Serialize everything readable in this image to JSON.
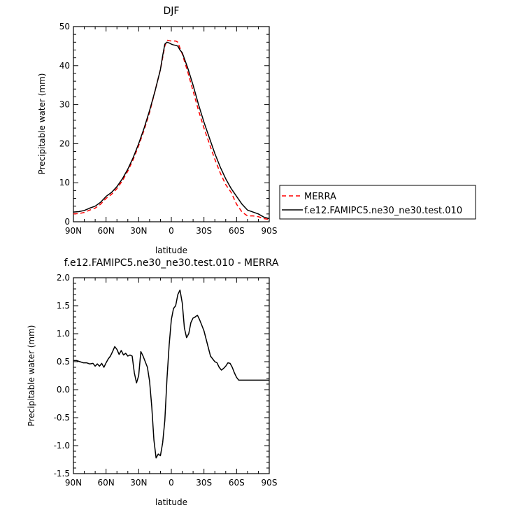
{
  "chart_data": [
    {
      "type": "line",
      "title": "DJF",
      "xlabel": "latitude",
      "ylabel": "Precipitable water (mm)",
      "xlim": [
        90,
        -90
      ],
      "ylim": [
        0,
        50
      ],
      "xticks": [
        90,
        60,
        30,
        0,
        -30,
        -60,
        -90
      ],
      "xtick_labels": [
        "90N",
        "60N",
        "30N",
        "0",
        "30S",
        "60S",
        "90S"
      ],
      "yticks": [
        0,
        10,
        20,
        30,
        40,
        50
      ],
      "ytick_labels": [
        "0",
        "10",
        "20",
        "30",
        "40",
        "50"
      ],
      "legend": {
        "placement": "right, outside plot"
      },
      "series": [
        {
          "name": "MERRA",
          "color": "#ff0000",
          "style": "dashed",
          "x": [
            90,
            85,
            80,
            75,
            70,
            65,
            60,
            55,
            50,
            45,
            40,
            35,
            30,
            25,
            20,
            15,
            10,
            8,
            6,
            4,
            2,
            0,
            -2,
            -4,
            -6,
            -8,
            -10,
            -15,
            -20,
            -25,
            -30,
            -35,
            -40,
            -45,
            -50,
            -55,
            -60,
            -65,
            -70,
            -75,
            -80,
            -85,
            -90
          ],
          "y": [
            2.0,
            2.1,
            2.4,
            3.0,
            3.5,
            4.5,
            6.0,
            7.0,
            8.5,
            10.5,
            13.0,
            16.0,
            19.5,
            23.5,
            28.0,
            33.5,
            39.0,
            42.0,
            45.0,
            46.5,
            46.4,
            46.3,
            46.3,
            46.3,
            46.0,
            44.5,
            43.0,
            38.5,
            33.5,
            28.5,
            24.0,
            20.0,
            16.0,
            12.5,
            9.5,
            7.5,
            4.5,
            2.5,
            1.5,
            1.5,
            1.3,
            0.8,
            0.6
          ]
        },
        {
          "name": "f.e12.FAMIPC5.ne30_ne30.test.010",
          "color": "#000000",
          "style": "solid",
          "x": [
            90,
            85,
            80,
            75,
            70,
            65,
            60,
            55,
            50,
            45,
            40,
            35,
            30,
            25,
            20,
            15,
            10,
            8,
            6,
            4,
            2,
            0,
            -2,
            -4,
            -6,
            -8,
            -10,
            -15,
            -20,
            -25,
            -30,
            -35,
            -40,
            -45,
            -50,
            -55,
            -60,
            -65,
            -70,
            -75,
            -80,
            -85,
            -90
          ],
          "y": [
            2.5,
            2.6,
            2.9,
            3.5,
            4.0,
            5.0,
            6.5,
            7.5,
            9.0,
            11.0,
            13.5,
            16.5,
            20.0,
            24.0,
            28.5,
            33.5,
            39.0,
            42.5,
            45.5,
            46.0,
            45.8,
            45.5,
            45.3,
            45.2,
            45.0,
            44.0,
            43.3,
            39.5,
            35.0,
            30.0,
            25.5,
            21.5,
            17.5,
            14.0,
            11.0,
            8.5,
            6.5,
            4.5,
            3.0,
            2.5,
            2.0,
            1.2,
            0.8
          ]
        }
      ]
    },
    {
      "type": "line",
      "title": "f.e12.FAMIPC5.ne30_ne30.test.010 - MERRA",
      "xlabel": "latitude",
      "ylabel": "Precipitable water (mm)",
      "xlim": [
        90,
        -90
      ],
      "ylim": [
        -1.5,
        2.0
      ],
      "xticks": [
        90,
        60,
        30,
        0,
        -30,
        -60,
        -90
      ],
      "xtick_labels": [
        "90N",
        "60N",
        "30N",
        "0",
        "30S",
        "60S",
        "90S"
      ],
      "yticks": [
        -1.5,
        -1.0,
        -0.5,
        0.0,
        0.5,
        1.0,
        1.5,
        2.0
      ],
      "ytick_labels": [
        "-1.5",
        "-1.0",
        "-0.5",
        "0.0",
        "0.5",
        "1.0",
        "1.5",
        "2.0"
      ],
      "series": [
        {
          "color": "#000000",
          "style": "solid",
          "x": [
            90,
            87,
            84,
            81,
            78,
            75,
            72,
            70,
            68,
            66,
            64,
            62,
            60,
            58,
            56,
            54,
            52,
            50,
            48,
            46,
            44,
            42,
            40,
            38,
            36,
            34,
            32,
            30,
            28,
            26,
            24,
            22,
            20,
            18,
            16,
            14,
            12,
            10,
            8,
            6,
            4,
            2,
            0,
            -2,
            -4,
            -6,
            -8,
            -10,
            -12,
            -14,
            -16,
            -18,
            -20,
            -22,
            -24,
            -26,
            -28,
            -30,
            -32,
            -34,
            -36,
            -38,
            -40,
            -42,
            -44,
            -46,
            -48,
            -50,
            -52,
            -54,
            -56,
            -58,
            -60,
            -62,
            -64,
            -66,
            -68,
            -70,
            -72,
            -74,
            -76,
            -78,
            -80,
            -82,
            -84,
            -86,
            -88,
            -90
          ],
          "y": [
            0.52,
            0.52,
            0.5,
            0.48,
            0.48,
            0.46,
            0.47,
            0.42,
            0.46,
            0.42,
            0.47,
            0.4,
            0.48,
            0.55,
            0.6,
            0.68,
            0.77,
            0.72,
            0.63,
            0.7,
            0.62,
            0.65,
            0.6,
            0.62,
            0.6,
            0.3,
            0.12,
            0.25,
            0.68,
            0.6,
            0.5,
            0.4,
            0.15,
            -0.3,
            -0.9,
            -1.22,
            -1.15,
            -1.18,
            -0.95,
            -0.55,
            0.2,
            0.8,
            1.25,
            1.45,
            1.5,
            1.7,
            1.78,
            1.55,
            1.1,
            0.93,
            1.0,
            1.2,
            1.28,
            1.3,
            1.33,
            1.25,
            1.15,
            1.05,
            0.9,
            0.75,
            0.6,
            0.55,
            0.5,
            0.48,
            0.4,
            0.35,
            0.38,
            0.42,
            0.48,
            0.47,
            0.4,
            0.3,
            0.22,
            0.17,
            0.17,
            0.17,
            0.17,
            0.17,
            0.17,
            0.17,
            0.17,
            0.17,
            0.17,
            0.17,
            0.17,
            0.17,
            0.17,
            0.17
          ]
        }
      ]
    }
  ]
}
